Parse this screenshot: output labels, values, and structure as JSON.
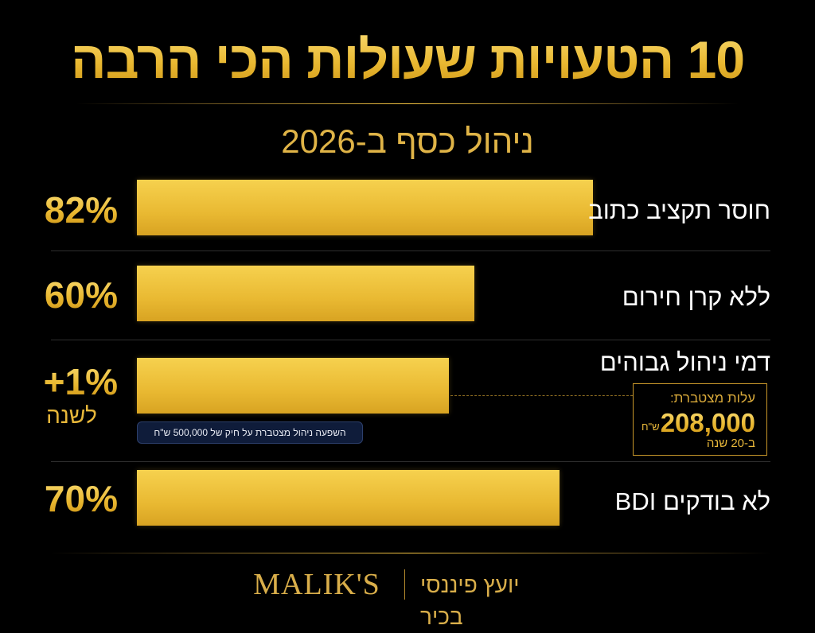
{
  "header": {
    "title": "10 הטעויות שעולות הכי הרבה",
    "subtitle": "ניהול כסף ב-2026"
  },
  "rows": [
    {
      "label": "חוסר תקציב כתוב",
      "value": "82%"
    },
    {
      "label": "ללא קרן חירום",
      "value": "60%"
    },
    {
      "label": "דמי ניהול גבוהים",
      "value": "+1%",
      "value_note": "לשנה",
      "note": "השפעה ניהול מצטברת על חיק של 500,000 ש\"ח",
      "callout": {
        "title": "עלות מצטברת:",
        "amount": "208,000",
        "unit": "ש\"ח",
        "period": "ב-20 שנה"
      }
    },
    {
      "label": "לא בודקים BDI",
      "value": "70%"
    }
  ],
  "footer": {
    "brand": "MALIK'S",
    "tagline": "יועץ פיננסי בכיר"
  }
}
